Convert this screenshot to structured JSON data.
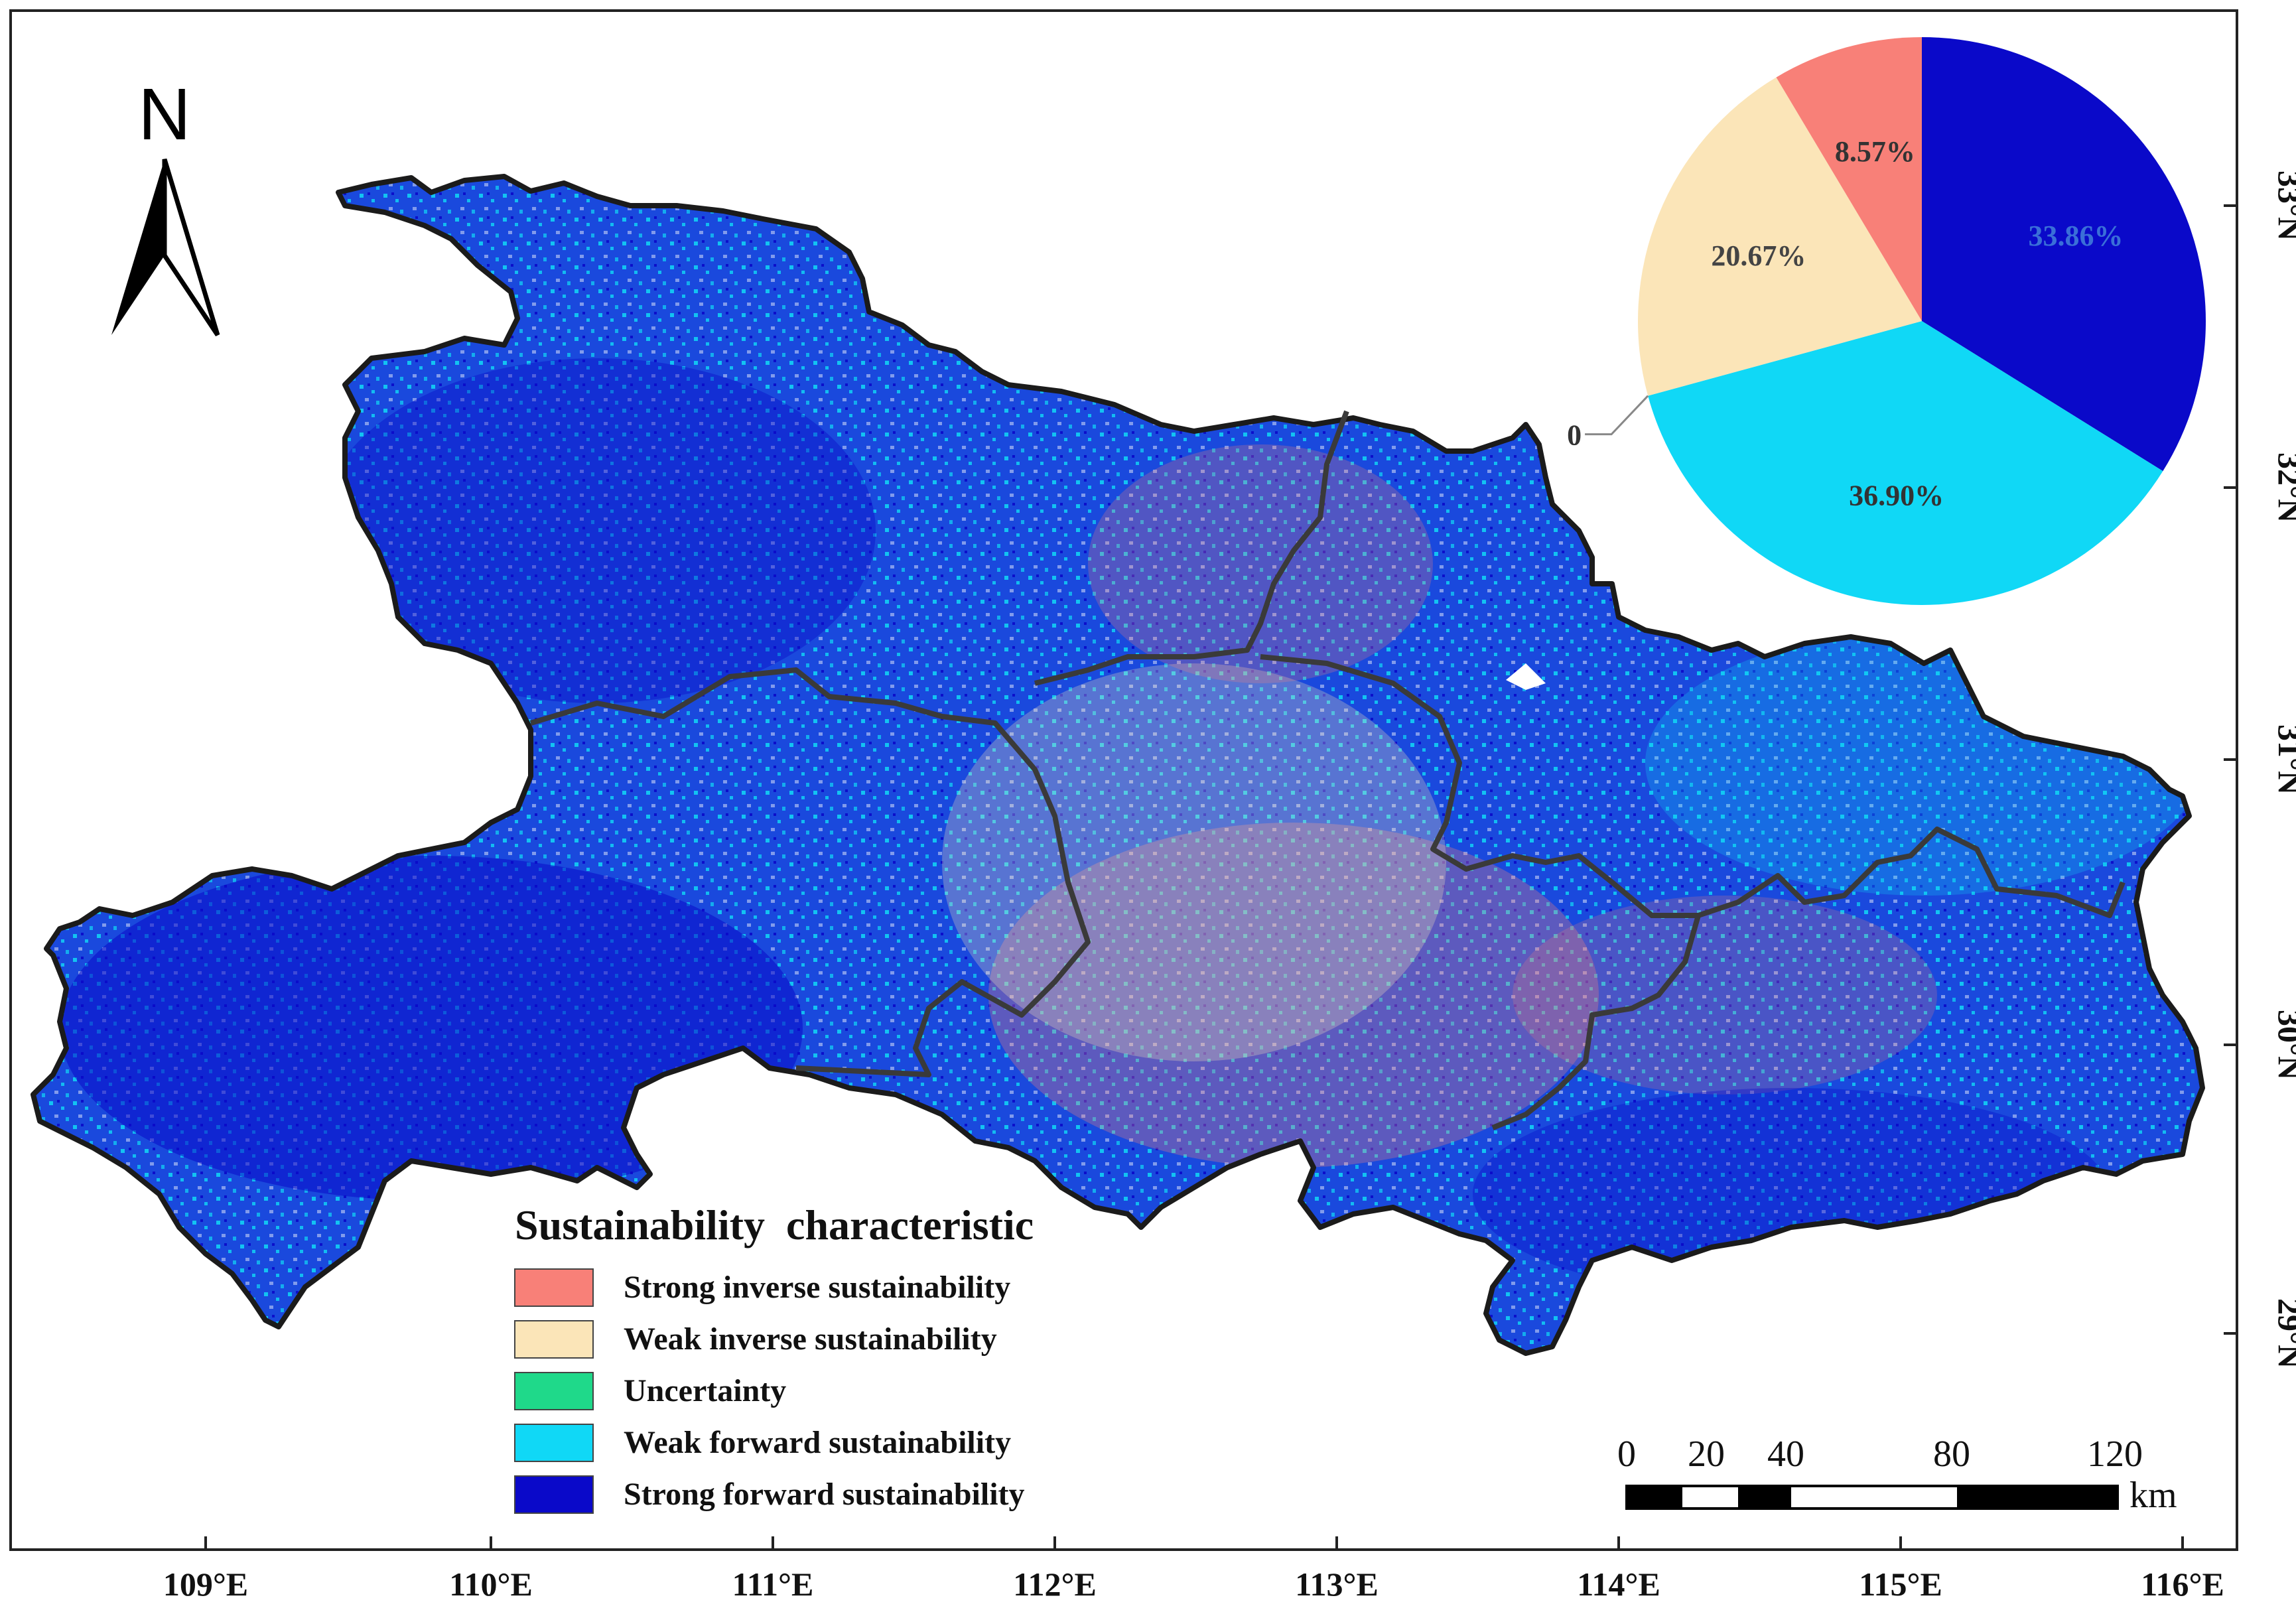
{
  "map": {
    "x_ticks": [
      "109°E",
      "110°E",
      "111°E",
      "112°E",
      "113°E",
      "114°E",
      "115°E",
      "116°E"
    ],
    "y_ticks": [
      "29°N",
      "30°N",
      "31°N",
      "32°N",
      "33°N"
    ],
    "north_label": "N",
    "colors": {
      "strong_inverse": "#f88078",
      "weak_inverse": "#fbe5b8",
      "uncertainty": "#1fd98a",
      "weak_forward": "#10d8f6",
      "strong_forward": "#0a09c9",
      "boundary": "#2b2b2b"
    }
  },
  "legend": {
    "title": "Sustainability  characteristic",
    "items": [
      {
        "label": "Strong inverse sustainability",
        "color": "#f88078"
      },
      {
        "label": "Weak inverse sustainability",
        "color": "#fbe5b8"
      },
      {
        "label": "Uncertainty",
        "color": "#1fd98a"
      },
      {
        "label": "Weak forward sustainability",
        "color": "#10d8f6"
      },
      {
        "label": "Strong forward sustainability",
        "color": "#0a09c9"
      }
    ]
  },
  "scale_bar": {
    "labels": [
      "0",
      "20",
      "40",
      "80",
      "120"
    ],
    "unit": "km"
  },
  "chart_data": {
    "type": "pie",
    "slices": [
      {
        "category": "Strong forward sustainability",
        "value": 33.86,
        "label": "33.86%",
        "color": "#0a09c9"
      },
      {
        "category": "Weak forward sustainability",
        "value": 36.9,
        "label": "36.90%",
        "color": "#10d8f6"
      },
      {
        "category": "Uncertainty",
        "value": 0,
        "label": "0",
        "color": "#1fd98a"
      },
      {
        "category": "Weak inverse sustainability",
        "value": 20.67,
        "label": "20.67%",
        "color": "#fbe5b8"
      },
      {
        "category": "Strong inverse sustainability",
        "value": 8.57,
        "label": "8.57%",
        "color": "#f88078"
      }
    ]
  }
}
